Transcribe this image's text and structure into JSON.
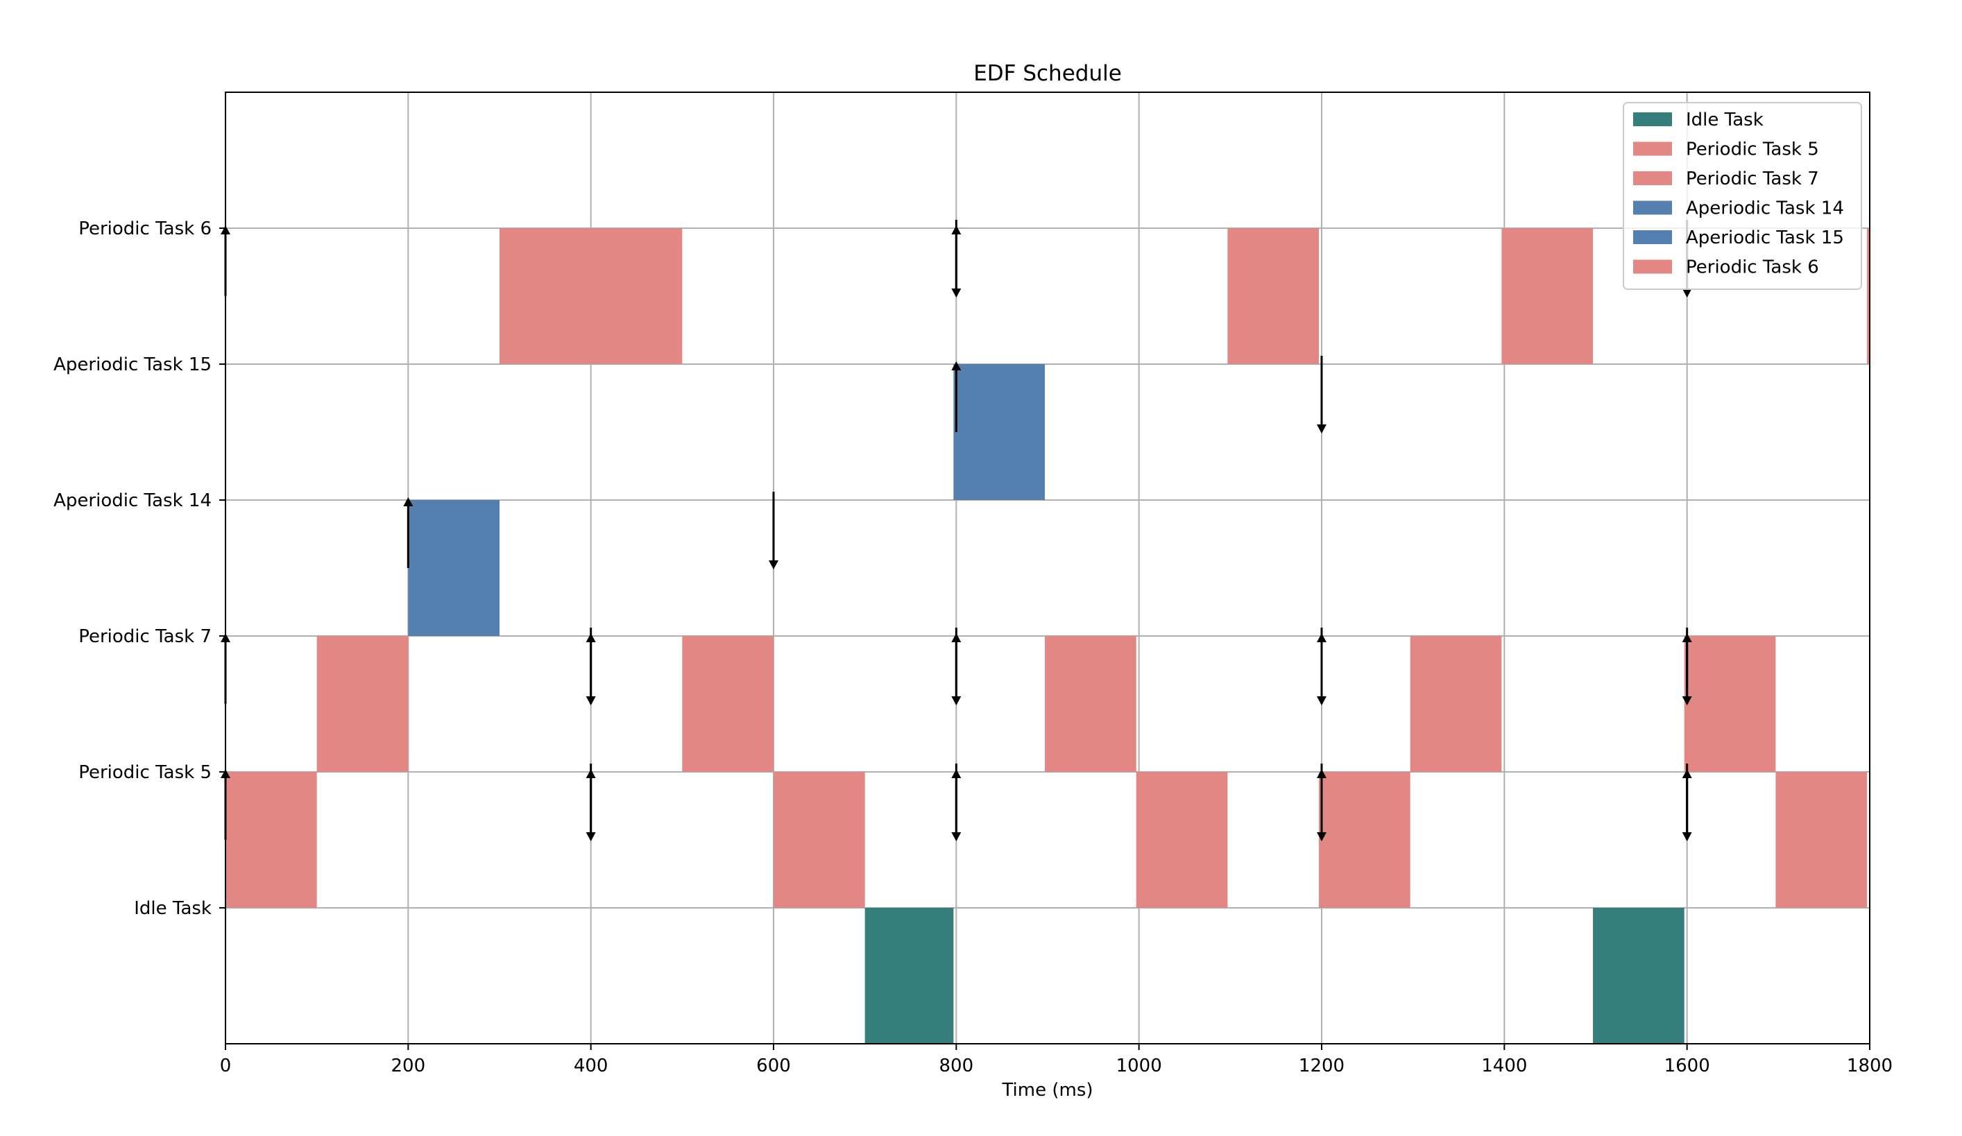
{
  "chart_data": {
    "type": "gantt",
    "title": "EDF Schedule",
    "xlabel": "Time (ms)",
    "xlim": [
      0,
      1800
    ],
    "xticks": [
      "0",
      "200",
      "400",
      "600",
      "800",
      "1000",
      "1200",
      "1400",
      "1600",
      "1800"
    ],
    "grid": true,
    "legend_position": "top-right",
    "tasks": [
      {
        "name": "Idle Task",
        "color": "#367e7b"
      },
      {
        "name": "Periodic Task 5",
        "color": "#e28783"
      },
      {
        "name": "Periodic Task 7",
        "color": "#e28783"
      },
      {
        "name": "Aperiodic Task 14",
        "color": "#5480b0"
      },
      {
        "name": "Aperiodic Task 15",
        "color": "#5480b0"
      },
      {
        "name": "Periodic Task 6",
        "color": "#e28783"
      }
    ],
    "segments": [
      {
        "task": 1,
        "start": 0,
        "end": 100
      },
      {
        "task": 2,
        "start": 100,
        "end": 200
      },
      {
        "task": 3,
        "start": 200,
        "end": 300
      },
      {
        "task": 5,
        "start": 300,
        "end": 500
      },
      {
        "task": 2,
        "start": 500,
        "end": 600
      },
      {
        "task": 1,
        "start": 600,
        "end": 700
      },
      {
        "task": 0,
        "start": 700,
        "end": 797
      },
      {
        "task": 4,
        "start": 797,
        "end": 897
      },
      {
        "task": 2,
        "start": 897,
        "end": 997
      },
      {
        "task": 1,
        "start": 997,
        "end": 1097
      },
      {
        "task": 5,
        "start": 1097,
        "end": 1197
      },
      {
        "task": 1,
        "start": 1197,
        "end": 1297
      },
      {
        "task": 2,
        "start": 1297,
        "end": 1397
      },
      {
        "task": 5,
        "start": 1397,
        "end": 1497
      },
      {
        "task": 0,
        "start": 1497,
        "end": 1597
      },
      {
        "task": 2,
        "start": 1597,
        "end": 1697
      },
      {
        "task": 1,
        "start": 1697,
        "end": 1797
      },
      {
        "task": 5,
        "start": 1797,
        "end": 1800
      }
    ],
    "releases": [
      {
        "task": 5,
        "time": 0
      },
      {
        "task": 2,
        "time": 0
      },
      {
        "task": 1,
        "time": 0
      },
      {
        "task": 3,
        "time": 200
      },
      {
        "task": 2,
        "time": 400
      },
      {
        "task": 1,
        "time": 400
      },
      {
        "task": 5,
        "time": 800
      },
      {
        "task": 4,
        "time": 800
      },
      {
        "task": 2,
        "time": 800
      },
      {
        "task": 1,
        "time": 800
      },
      {
        "task": 2,
        "time": 1200
      },
      {
        "task": 1,
        "time": 1200
      },
      {
        "task": 2,
        "time": 1600
      },
      {
        "task": 1,
        "time": 1600
      }
    ],
    "deadlines": [
      {
        "task": 3,
        "time": 600
      },
      {
        "task": 5,
        "time": 800
      },
      {
        "task": 4,
        "time": 1200
      },
      {
        "task": 5,
        "time": 1600
      },
      {
        "task": 2,
        "time": 400
      },
      {
        "task": 1,
        "time": 400
      },
      {
        "task": 2,
        "time": 800
      },
      {
        "task": 1,
        "time": 800
      },
      {
        "task": 2,
        "time": 1200
      },
      {
        "task": 1,
        "time": 1200
      },
      {
        "task": 2,
        "time": 1600
      },
      {
        "task": 1,
        "time": 1600
      }
    ]
  }
}
